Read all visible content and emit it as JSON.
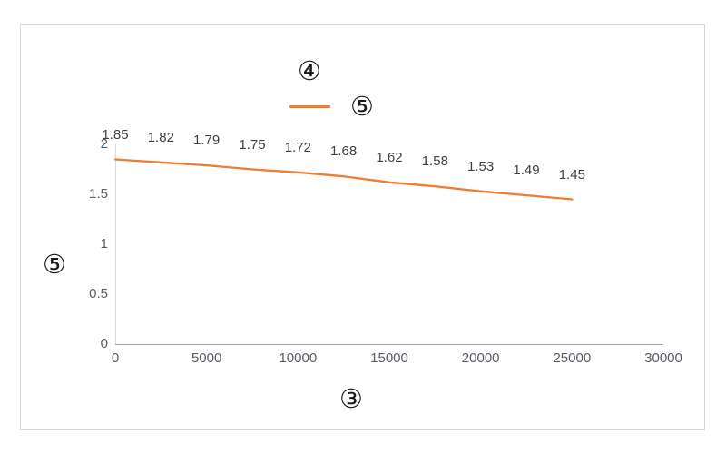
{
  "chart_data": {
    "type": "line",
    "title": "④",
    "xlabel": "③",
    "ylabel": "⑤",
    "legend_position": "top",
    "grid": false,
    "x": [
      0,
      2500,
      5000,
      7500,
      10000,
      12500,
      15000,
      17500,
      20000,
      22500,
      25000
    ],
    "series": [
      {
        "name": "⑤",
        "color": "#ED7D31",
        "values": [
          1.85,
          1.82,
          1.79,
          1.75,
          1.72,
          1.68,
          1.62,
          1.58,
          1.53,
          1.49,
          1.45
        ]
      }
    ],
    "data_labels": [
      "1.85",
      "1.82",
      "1.79",
      "1.75",
      "1.72",
      "1.68",
      "1.62",
      "1.58",
      "1.53",
      "1.49",
      "1.45"
    ],
    "x_ticks": [
      0,
      5000,
      10000,
      15000,
      20000,
      25000,
      30000
    ],
    "y_ticks": [
      0,
      0.5,
      1,
      1.5,
      2
    ],
    "xlim": [
      0,
      30000
    ],
    "ylim": [
      0,
      2
    ],
    "colors": {
      "series_line": "#ED7D31",
      "tick_text": "#5b5b64",
      "data_label_text": "#3f3f3f",
      "x_axis_line": "#a3a3ab",
      "y_axis_line": "#d9d9de",
      "frame_border": "#d6d6d6"
    }
  }
}
